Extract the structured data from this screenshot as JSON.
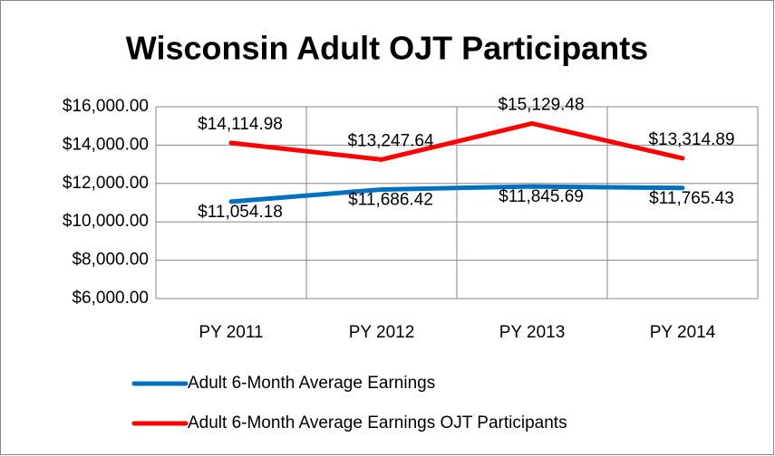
{
  "chart_data": {
    "type": "line",
    "title": "Wisconsin Adult OJT Participants",
    "categories": [
      "PY 2011",
      "PY 2012",
      "PY 2013",
      "PY 2014"
    ],
    "series": [
      {
        "name": "Adult 6-Month Average Earnings",
        "color": "#0070c0",
        "values": [
          11054.18,
          11686.42,
          11845.69,
          11765.43
        ],
        "value_labels": [
          "$11,054.18",
          "$11,686.42",
          "$11,845.69",
          "$11,765.43"
        ]
      },
      {
        "name": "Adult 6-Month Average Earnings OJT Participants",
        "color": "#ff0000",
        "values": [
          14114.98,
          13247.64,
          15129.48,
          13314.89
        ],
        "value_labels": [
          "$14,114.98",
          "$13,247.64",
          "$15,129.48",
          "$13,314.89"
        ]
      }
    ],
    "ylim": [
      6000,
      16000
    ],
    "yticks": [
      {
        "value": 6000,
        "label": "$6,000.00"
      },
      {
        "value": 8000,
        "label": "$8,000.00"
      },
      {
        "value": 10000,
        "label": "$10,000.00"
      },
      {
        "value": 12000,
        "label": "$12,000.00"
      },
      {
        "value": 14000,
        "label": "$14,000.00"
      },
      {
        "value": 16000,
        "label": "$16,000.00"
      }
    ],
    "grid": true,
    "legend": "bottom"
  }
}
